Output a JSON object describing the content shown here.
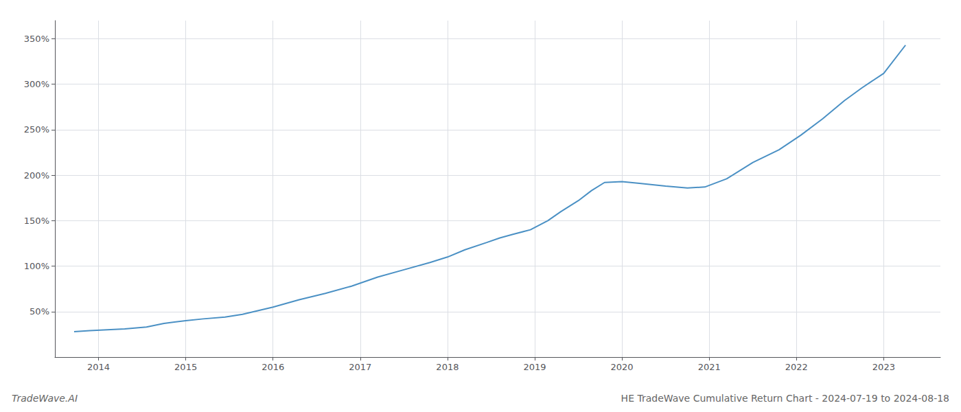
{
  "chart_data": {
    "type": "line",
    "title": "HE TradeWave Cumulative Return Chart - 2024-07-19 to 2024-08-18",
    "annotations": [
      "TradeWave.AI"
    ],
    "color": "#4a90c4",
    "grid": true,
    "x": [
      2013.72,
      2013.9,
      2014.1,
      2014.3,
      2014.55,
      2014.75,
      2015.0,
      2015.2,
      2015.45,
      2015.65,
      2016.0,
      2016.3,
      2016.6,
      2016.9,
      2017.2,
      2017.5,
      2017.8,
      2018.0,
      2018.2,
      2018.45,
      2018.6,
      2018.75,
      2018.95,
      2019.15,
      2019.3,
      2019.5,
      2019.65,
      2019.8,
      2020.0,
      2020.2,
      2020.5,
      2020.75,
      2020.95,
      2021.2,
      2021.5,
      2021.8,
      2022.05,
      2022.3,
      2022.55,
      2022.75,
      2023.0,
      2023.25
    ],
    "values": [
      28,
      29,
      30,
      31,
      33,
      37,
      40,
      42,
      44,
      47,
      55,
      63,
      70,
      78,
      88,
      96,
      104,
      110,
      118,
      126,
      131,
      135,
      140,
      150,
      160,
      172,
      183,
      192,
      193,
      191,
      188,
      186,
      187,
      196,
      214,
      228,
      244,
      262,
      282,
      296,
      312,
      343
    ],
    "xlim": [
      2013.5,
      2023.65
    ],
    "xticks": [
      2014,
      2015,
      2016,
      2017,
      2018,
      2019,
      2020,
      2021,
      2022,
      2023
    ],
    "ylim": [
      0,
      370
    ],
    "yticks": [
      {
        "value": 50,
        "label": "50%"
      },
      {
        "value": 100,
        "label": "100%"
      },
      {
        "value": 150,
        "label": "150%"
      },
      {
        "value": 200,
        "label": "200%"
      },
      {
        "value": 250,
        "label": "250%"
      },
      {
        "value": 300,
        "label": "300%"
      },
      {
        "value": 350,
        "label": "350%"
      }
    ]
  }
}
